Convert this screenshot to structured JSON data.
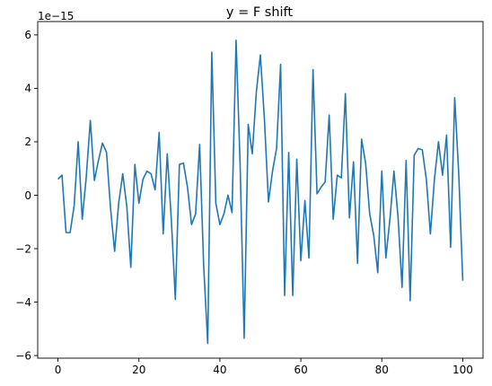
{
  "chart_data": {
    "type": "line",
    "title": "y = F shift",
    "xlabel": "",
    "ylabel": "",
    "y_offset_label": "1e−15",
    "y_scale": 1e-15,
    "xlim": [
      -5,
      105
    ],
    "ylim": [
      -6.1,
      6.5
    ],
    "x_ticks": [
      0,
      20,
      40,
      60,
      80,
      100
    ],
    "x_tick_labels": [
      "0",
      "20",
      "40",
      "60",
      "80",
      "100"
    ],
    "y_ticks": [
      6,
      4,
      2,
      0,
      -2,
      -4,
      -6
    ],
    "y_tick_labels": [
      "6",
      "4",
      "2",
      "0",
      "−2",
      "−4",
      "−6"
    ],
    "grid": false,
    "line_color": "#1f77b4",
    "series": [
      {
        "x_start": 0,
        "x_step": 1,
        "values": [
          0.6,
          0.75,
          -1.4,
          -1.4,
          -0.4,
          2.0,
          -0.9,
          0.7,
          2.8,
          0.55,
          1.3,
          1.95,
          1.6,
          -0.5,
          -2.1,
          -0.3,
          0.8,
          -0.4,
          -2.7,
          1.15,
          -0.3,
          0.6,
          0.9,
          0.8,
          0.2,
          2.35,
          -1.45,
          1.55,
          -0.9,
          -3.9,
          1.15,
          1.2,
          0.3,
          -1.1,
          -0.7,
          1.9,
          -2.65,
          -5.55,
          5.35,
          -0.3,
          -1.1,
          -0.7,
          0.0,
          -0.65,
          5.8,
          1.15,
          -5.35,
          2.65,
          1.55,
          3.85,
          5.25,
          2.85,
          -0.25,
          0.9,
          1.75,
          4.9,
          -3.75,
          1.6,
          -3.75,
          1.35,
          -2.45,
          -0.2,
          -2.35,
          4.7,
          0.05,
          0.3,
          0.5,
          3.0,
          -0.9,
          0.75,
          0.65,
          3.8,
          -0.85,
          1.25,
          -2.55,
          2.1,
          1.2,
          -0.7,
          -1.5,
          -2.9,
          0.9,
          -2.35,
          -0.9,
          0.9,
          -0.8,
          -3.45,
          1.3,
          -3.95,
          1.5,
          1.75,
          1.7,
          0.6,
          -1.45,
          0.6,
          2.0,
          0.75,
          2.25,
          -1.95,
          3.65,
          0.8,
          -3.2
        ]
      }
    ]
  }
}
